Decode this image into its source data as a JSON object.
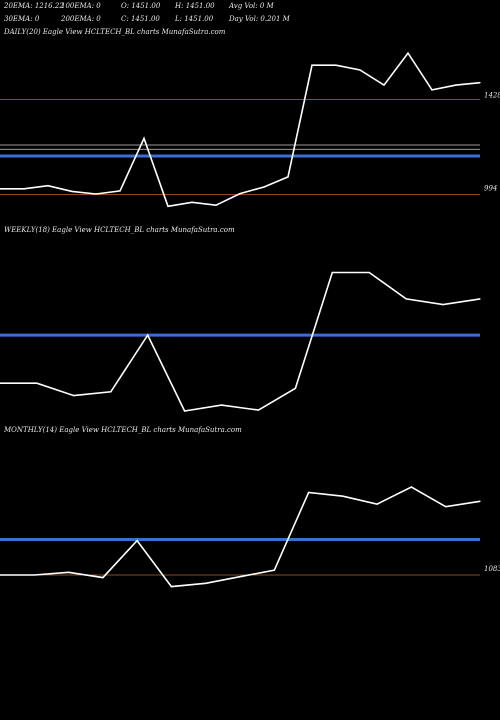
{
  "header": {
    "ema20": "20EMA: 1216.22",
    "ema100": "100EMA: 0",
    "open": "O: 1451.00",
    "high": "H: 1451.00",
    "avgvol": "Avg Vol: 0  M",
    "ema30": "30EMA: 0",
    "ema200": "200EMA: 0",
    "close": "C: 1451.00",
    "low": "L: 1451.00",
    "dayvol": "Day Vol: 0.201 M"
  },
  "colors": {
    "line": "#ffffff",
    "ema": "#3b6fd8",
    "level": "#8a4a2a"
  },
  "chart_data": [
    {
      "type": "line",
      "title": "DAILY(20) Eagle  View  HCLTECH_BL  charts MunafaSutra.com",
      "ylim": [
        900,
        1700
      ],
      "series": [
        {
          "values": [
            1020,
            1020,
            1034,
            1008,
            996,
            1010,
            1250,
            940,
            958,
            945,
            998,
            1028,
            1074,
            1585,
            1585,
            1563,
            1494,
            1640,
            1472,
            1494,
            1505
          ]
        }
      ],
      "ema_level": 1170,
      "levels": [
        {
          "value": 1428,
          "label": "1428"
        },
        {
          "value": 994,
          "label": "994"
        }
      ],
      "extra_levels": [
        1220,
        1200
      ]
    },
    {
      "type": "line",
      "title": "WEEKLY(18) Eagle  View  HCLTECH_BL  charts MunafaSutra.com",
      "ylim": [
        800,
        1900
      ],
      "series": [
        {
          "values": [
            1000,
            1000,
            922,
            946,
            1302,
            825,
            862,
            831,
            968,
            1696,
            1696,
            1530,
            1494,
            1530
          ]
        }
      ],
      "ema_level": 1302
    },
    {
      "type": "line",
      "title": "MONTHLY(14) Eagle  View  HCLTECH_BL  charts MunafaSutra.com",
      "ylim": [
        900,
        1700
      ],
      "series": [
        {
          "values": [
            1083,
            1083,
            1095,
            1071,
            1240,
            1030,
            1045,
            1075,
            1105,
            1460,
            1443,
            1407,
            1485,
            1395,
            1420
          ]
        }
      ],
      "ema_level": 1245,
      "levels": [
        {
          "value": 1083,
          "label": "1083"
        }
      ]
    }
  ]
}
